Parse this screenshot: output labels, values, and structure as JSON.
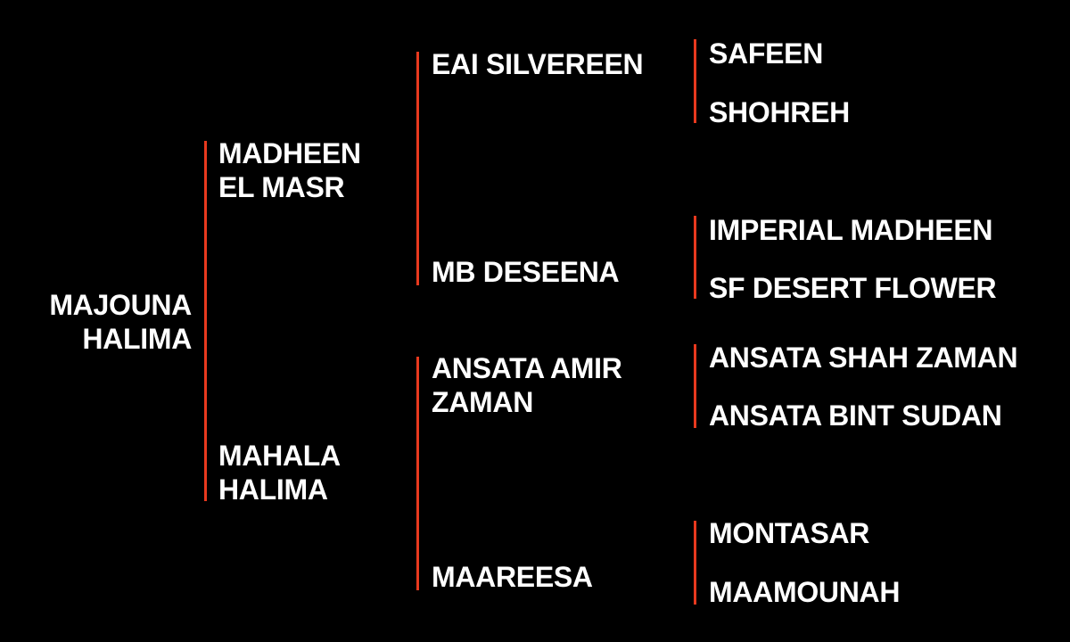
{
  "accent_color": "#e8391e",
  "pedigree": {
    "subject": [
      "MAJOUNA",
      "HALIMA"
    ],
    "sire": [
      "MADHEEN",
      "EL MASR"
    ],
    "dam": [
      "MAHALA",
      "HALIMA"
    ],
    "sire_sire": "EAI SILVEREEN",
    "sire_dam": "MB DESEENA",
    "dam_sire": [
      "ANSATA AMIR",
      "ZAMAN"
    ],
    "dam_dam": "MAAREESA",
    "gen3": [
      "SAFEEN",
      "SHOHREH",
      "IMPERIAL MADHEEN",
      "SF DESERT FLOWER",
      "ANSATA SHAH ZAMAN",
      "ANSATA BINT SUDAN",
      "MONTASAR",
      "MAAMOUNAH"
    ]
  }
}
